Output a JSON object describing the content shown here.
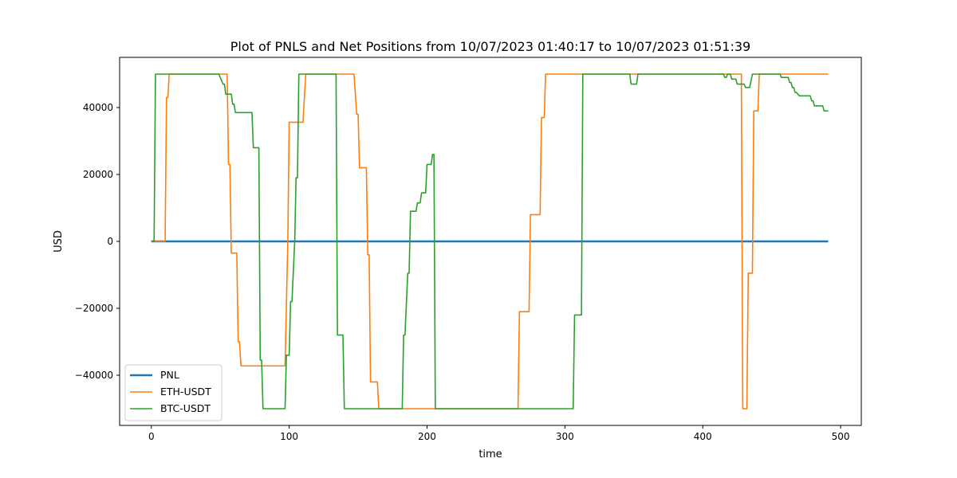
{
  "chart_data": {
    "type": "line",
    "title": "Plot of PNLS and Net Positions from 10/07/2023 01:40:17 to 10/07/2023 01:51:39",
    "xlabel": "time",
    "ylabel": "USD",
    "xlim": [
      -23,
      515
    ],
    "ylim": [
      -55000,
      55000
    ],
    "xticks": [
      0,
      100,
      200,
      300,
      400,
      500
    ],
    "yticks": [
      -40000,
      -20000,
      0,
      20000,
      40000
    ],
    "xtick_labels": [
      "0",
      "100",
      "200",
      "300",
      "400",
      "500"
    ],
    "ytick_labels": [
      "−40000",
      "−20000",
      "0",
      "20000",
      "40000"
    ],
    "grid": false,
    "legend_position": "lower-left",
    "series": [
      {
        "name": "PNL",
        "color": "#1f77b4",
        "x": [
          0,
          491
        ],
        "y": [
          0,
          0
        ]
      },
      {
        "name": "ETH-USDT",
        "color": "#ff7f0e",
        "x": [
          0,
          10,
          11,
          12,
          13,
          50,
          55,
          56,
          57,
          58,
          62,
          63,
          64,
          65,
          66,
          97,
          99,
          100,
          106,
          107,
          110,
          112,
          113,
          147,
          149,
          150,
          151,
          152,
          156,
          157,
          158,
          159,
          160,
          164,
          165,
          166,
          200,
          206,
          266,
          267,
          268,
          274,
          275,
          276,
          282,
          283,
          285,
          286,
          287,
          425,
          426,
          428,
          429,
          432,
          433,
          434,
          436,
          437,
          440,
          441,
          491
        ],
        "y": [
          0,
          0,
          43000,
          43000,
          50000,
          50000,
          50000,
          23000,
          23000,
          -3500,
          -3500,
          -30000,
          -30000,
          -37200,
          -37200,
          -37200,
          0,
          35600,
          35600,
          35600,
          35600,
          50000,
          50000,
          50000,
          38000,
          38000,
          22000,
          22000,
          22000,
          -4000,
          -4000,
          -42000,
          -42000,
          -42000,
          -50000,
          -50000,
          -50000,
          -50000,
          -50000,
          -21000,
          -21000,
          -21000,
          8000,
          8000,
          8000,
          37000,
          37000,
          50000,
          50000,
          50000,
          50000,
          50000,
          -50000,
          -50000,
          -9500,
          -9500,
          -9500,
          39000,
          39000,
          50000,
          50000
        ]
      },
      {
        "name": "BTC-USDT",
        "color": "#2ca02c",
        "x": [
          0,
          2,
          3,
          48,
          49,
          52,
          53,
          54,
          58,
          59,
          60,
          61,
          62,
          73,
          74,
          78,
          79,
          80,
          81,
          82,
          97,
          98,
          99,
          100,
          101,
          102,
          104,
          105,
          106,
          107,
          108,
          110,
          133,
          134,
          135,
          139,
          140,
          181,
          182,
          183,
          184,
          186,
          187,
          188,
          192,
          193,
          195,
          196,
          199,
          200,
          203,
          204,
          205,
          206,
          207,
          236,
          305,
          306,
          307,
          311,
          312,
          313,
          347,
          348,
          352,
          353,
          415,
          416,
          417,
          418,
          420,
          421,
          422,
          424,
          425,
          430,
          431,
          433,
          434,
          436,
          437,
          438,
          439,
          440,
          456,
          457,
          462,
          463,
          464,
          465,
          466,
          467,
          468,
          470,
          471,
          478,
          479,
          480,
          481,
          482,
          487,
          488,
          491
        ],
        "y": [
          0,
          0,
          50000,
          50000,
          50000,
          47000,
          47000,
          44000,
          44000,
          41000,
          41000,
          38500,
          38500,
          38500,
          28000,
          28000,
          -35500,
          -35500,
          -50000,
          -50000,
          -50000,
          -34000,
          -34000,
          -34000,
          -18000,
          -18000,
          0,
          19000,
          19000,
          50000,
          50000,
          50000,
          50000,
          50000,
          -28000,
          -28000,
          -50000,
          -50000,
          -50000,
          -28000,
          -28000,
          -9500,
          -9500,
          9000,
          9000,
          11500,
          11500,
          14500,
          14500,
          23000,
          23000,
          26000,
          26000,
          -50000,
          -50000,
          -50000,
          -50000,
          -50000,
          -22000,
          -22000,
          -22000,
          50000,
          50000,
          47000,
          47000,
          50000,
          50000,
          49000,
          49000,
          50000,
          50000,
          48500,
          48500,
          48500,
          47000,
          47000,
          46000,
          46000,
          46000,
          50000,
          50000,
          50000,
          50000,
          50000,
          50000,
          49000,
          49000,
          47500,
          47500,
          46000,
          46000,
          44500,
          44500,
          43500,
          43500,
          43500,
          42000,
          42000,
          40500,
          40500,
          40500,
          39000,
          39000
        ]
      }
    ]
  }
}
